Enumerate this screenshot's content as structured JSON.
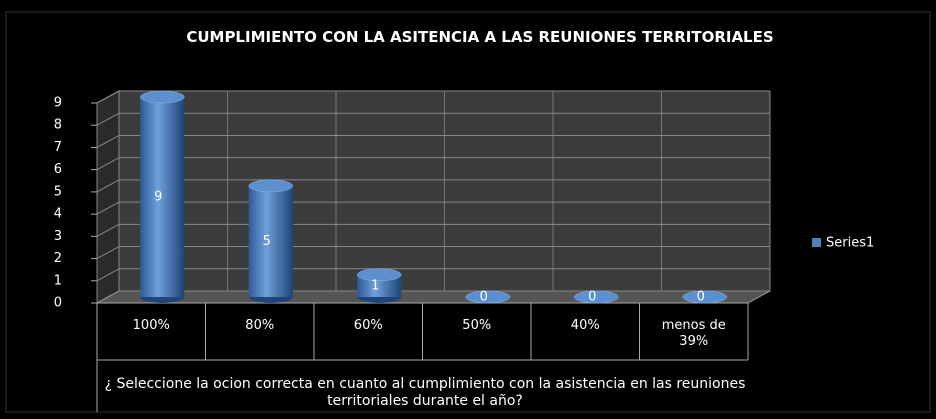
{
  "chart_data": {
    "type": "bar",
    "title": "CUMPLIMIENTO  CON LA ASITENCIA  A LAS REUNIONES TERRITORIALES",
    "xlabel": "¿ Seleccione la ocion correcta en cuanto al cumplimiento con la asistencia en las reuniones territoriales durante el año?",
    "categories": [
      "100%",
      "80%",
      "60%",
      "50%",
      "40%",
      "menos de 39%"
    ],
    "series": [
      {
        "name": "Series1",
        "color": "#4f81bd",
        "values": [
          9,
          5,
          1,
          0,
          0,
          0
        ]
      }
    ],
    "ylim": [
      0,
      9
    ],
    "yticks": [
      0,
      1,
      2,
      3,
      4,
      5,
      6,
      7,
      8,
      9
    ],
    "grid": true,
    "legend": "right"
  }
}
